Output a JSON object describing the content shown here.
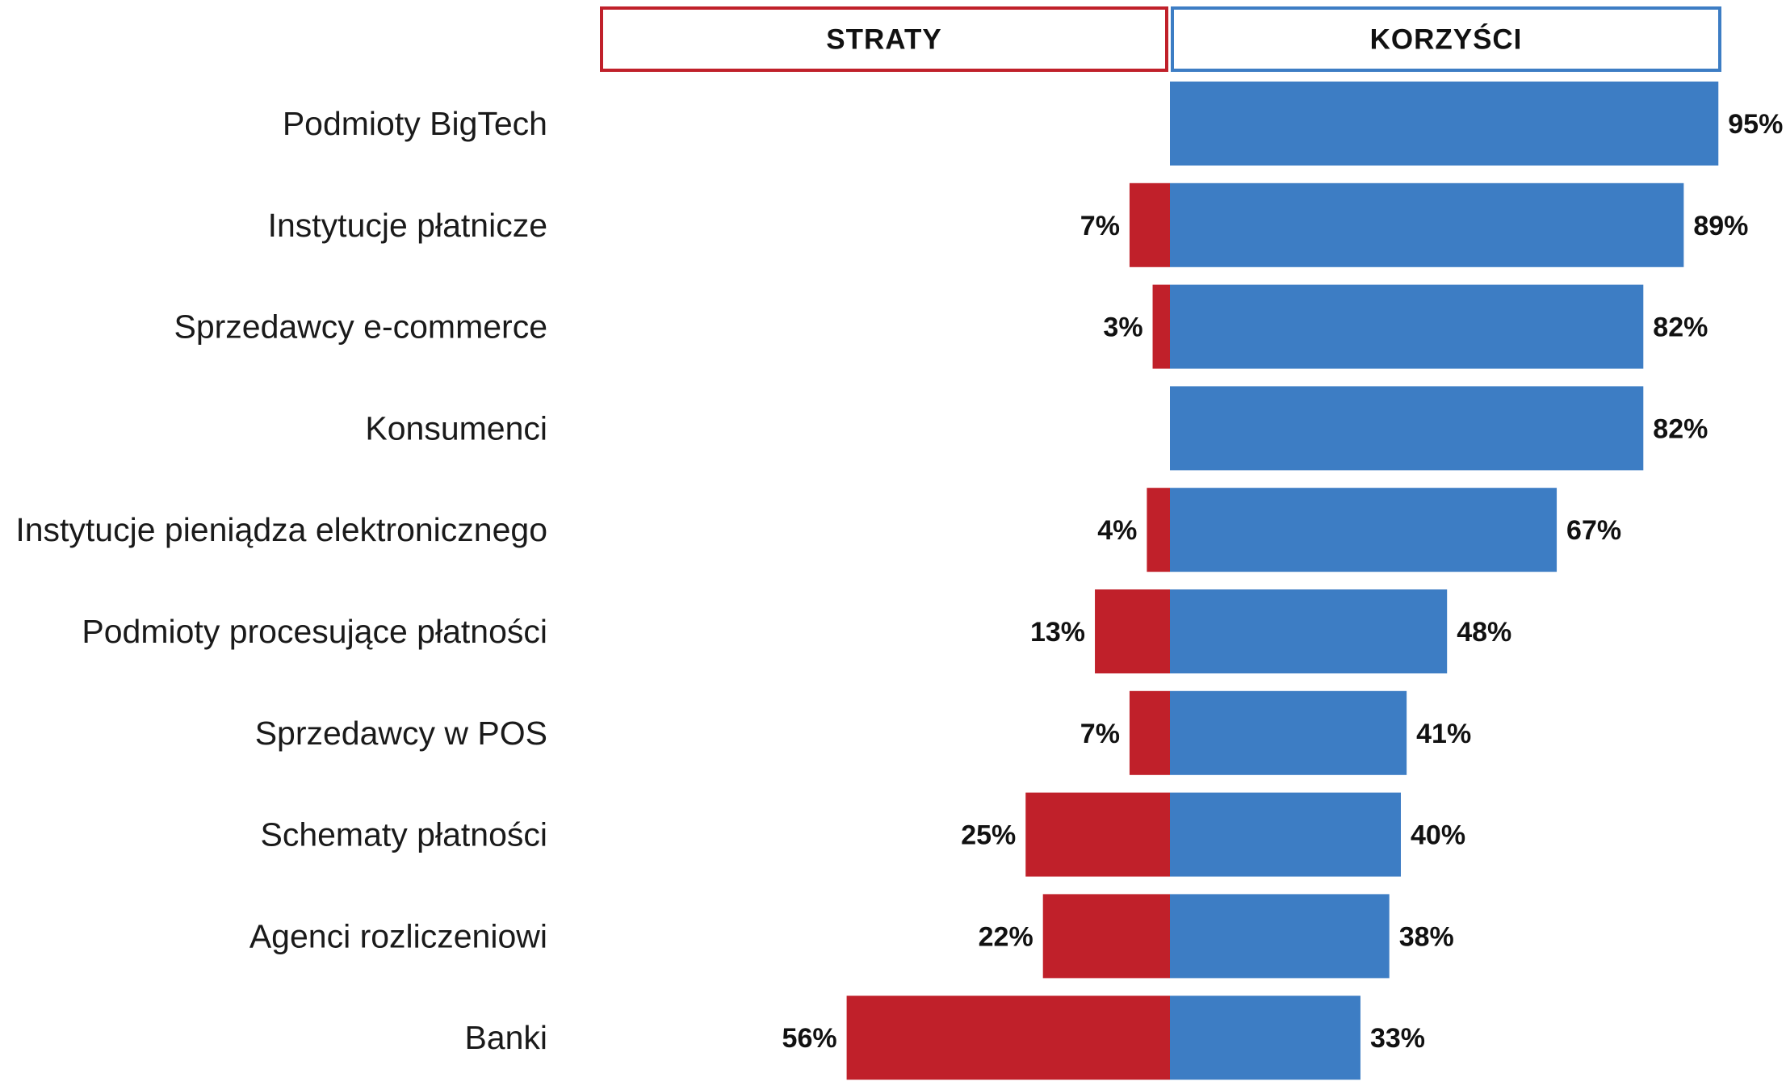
{
  "chart_data": {
    "type": "bar",
    "orientation": "horizontal-diverging",
    "categories": [
      "Podmioty BigTech",
      "Instytucje płatnicze",
      "Sprzedawcy e-commerce",
      "Konsumenci",
      "Instytucje pieniądza elektronicznego",
      "Podmioty procesujące płatności",
      "Sprzedawcy w POS",
      "Schematy płatności",
      "Agenci rozliczeniowi",
      "Banki"
    ],
    "series": [
      {
        "name": "STRATY",
        "color": "#c0202a",
        "direction": "left",
        "values": [
          0,
          7,
          3,
          0,
          4,
          13,
          7,
          25,
          22,
          56
        ],
        "labels": [
          "",
          "7%",
          "3%",
          "",
          "4%",
          "13%",
          "7%",
          "25%",
          "22%",
          "56%"
        ]
      },
      {
        "name": "KORZYŚCI",
        "color": "#3d7dc4",
        "direction": "right",
        "values": [
          95,
          89,
          82,
          82,
          67,
          48,
          41,
          40,
          38,
          33
        ],
        "labels": [
          "95%",
          "89%",
          "82%",
          "82%",
          "67%",
          "48%",
          "41%",
          "40%",
          "38%",
          "33%"
        ]
      }
    ],
    "unit": "%",
    "xlim": [
      -100,
      100
    ],
    "grid": false,
    "legend": "top"
  }
}
